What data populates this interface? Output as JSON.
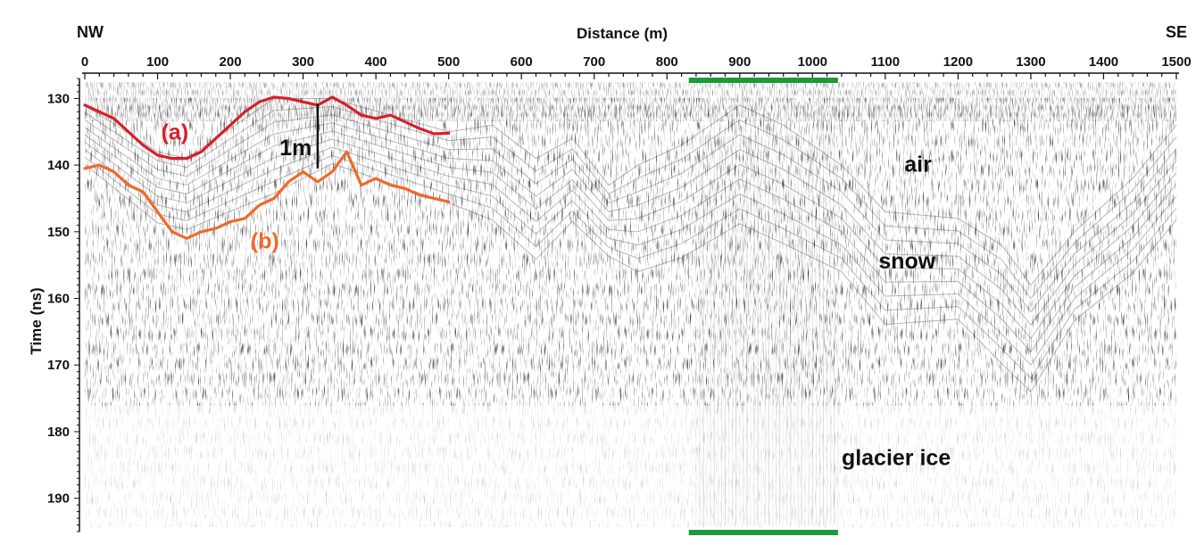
{
  "chart_data": {
    "type": "line",
    "title": "",
    "xlabel": "Distance (m)",
    "ylabel": "Time (ns)",
    "xlim": [
      0,
      1500
    ],
    "ylim": [
      127,
      195
    ],
    "y_inverted": true,
    "x_axis_position": "top",
    "x_end_labels": {
      "left": "NW",
      "right": "SE"
    },
    "x_ticks": [
      "0",
      "100",
      "200",
      "300",
      "400",
      "500",
      "600",
      "700",
      "800",
      "900",
      "1000",
      "1100",
      "1200",
      "1300",
      "1400",
      "1500"
    ],
    "y_ticks": [
      "130",
      "140",
      "150",
      "160",
      "170",
      "180",
      "190"
    ],
    "series": [
      {
        "name": "(a)",
        "color": "#d5202a",
        "x": [
          0,
          20,
          40,
          60,
          80,
          100,
          120,
          140,
          160,
          180,
          200,
          220,
          240,
          260,
          280,
          300,
          320,
          340,
          360,
          380,
          400,
          420,
          440,
          460,
          480,
          500
        ],
        "y": [
          131,
          132,
          133,
          135,
          137,
          138.5,
          139,
          139,
          138,
          136,
          134,
          132,
          130.5,
          129.8,
          130,
          130.5,
          131,
          129.8,
          131,
          132.5,
          133,
          132.5,
          133.5,
          134.5,
          135.3,
          135.2
        ]
      },
      {
        "name": "(b)",
        "color": "#ee6a2a",
        "x": [
          0,
          20,
          40,
          60,
          80,
          100,
          120,
          140,
          160,
          180,
          200,
          220,
          240,
          260,
          280,
          300,
          320,
          340,
          360,
          380,
          400,
          420,
          440,
          460,
          480,
          500
        ],
        "y": [
          140.5,
          140,
          141,
          143,
          144,
          147,
          150,
          151,
          150,
          149.5,
          148.5,
          148,
          146,
          145,
          142.5,
          141,
          142.5,
          141,
          138,
          143,
          142,
          143,
          143.5,
          144.5,
          145,
          145.5
        ]
      }
    ],
    "annotations": {
      "label_a": "(a)",
      "label_b": "(b)",
      "scale_label": "1m",
      "zone_air": "air",
      "zone_snow": "snow",
      "zone_ice": "glacier ice"
    },
    "highlight_range": {
      "x": [
        830,
        1035
      ],
      "color": "#1a9a3a"
    },
    "grid": false
  }
}
